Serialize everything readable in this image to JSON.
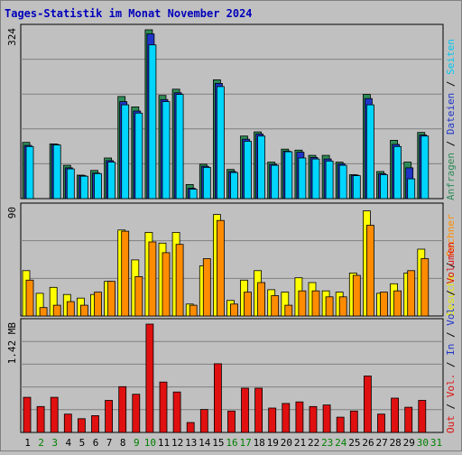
{
  "title": "Tages-Statistik im Monat November 2024",
  "colors": {
    "background": "#c0c0c0",
    "title": "#0000bb",
    "anfragen": "#2e8b57",
    "dateien": "#1f35c8",
    "seiten": "#00d5ff",
    "besuche": "#ffff00",
    "rechner": "#ff8c00",
    "volumen": "#e01010",
    "weekend": "#008000",
    "weekday": "#000000"
  },
  "chart_data": [
    {
      "type": "bar",
      "panel": "hits",
      "ytick": "324",
      "ylim": [
        0,
        324
      ],
      "categories": [
        "1",
        "2",
        "3",
        "4",
        "5",
        "6",
        "7",
        "8",
        "9",
        "10",
        "11",
        "12",
        "13",
        "14",
        "15",
        "16",
        "17",
        "18",
        "19",
        "20",
        "21",
        "22",
        "23",
        "24",
        "25",
        "26",
        "27",
        "28",
        "29",
        "30",
        "31"
      ],
      "series": [
        {
          "name": "Anfragen",
          "values": [
            108,
            0,
            105,
            64,
            45,
            54,
            78,
            196,
            176,
            324,
            198,
            210,
            27,
            66,
            228,
            56,
            120,
            128,
            70,
            95,
            93,
            83,
            83,
            70,
            46,
            200,
            52,
            112,
            70,
            127,
            0
          ]
        },
        {
          "name": "Dateien",
          "values": [
            102,
            0,
            104,
            59,
            44,
            49,
            73,
            186,
            168,
            316,
            190,
            203,
            20,
            62,
            221,
            52,
            114,
            124,
            66,
            91,
            89,
            79,
            76,
            67,
            45,
            192,
            48,
            104,
            59,
            122,
            0
          ]
        },
        {
          "name": "Seiten",
          "values": [
            100,
            0,
            103,
            57,
            43,
            48,
            70,
            180,
            164,
            295,
            186,
            200,
            18,
            60,
            215,
            50,
            110,
            120,
            64,
            90,
            78,
            76,
            72,
            64,
            44,
            180,
            46,
            100,
            38,
            120,
            0
          ]
        }
      ]
    },
    {
      "type": "bar",
      "panel": "visits",
      "ytick": "90",
      "ylim": [
        0,
        90
      ],
      "categories": [
        "1",
        "2",
        "3",
        "4",
        "5",
        "6",
        "7",
        "8",
        "9",
        "10",
        "11",
        "12",
        "13",
        "14",
        "15",
        "16",
        "17",
        "18",
        "19",
        "20",
        "21",
        "22",
        "23",
        "24",
        "25",
        "26",
        "27",
        "28",
        "29",
        "30",
        "31"
      ],
      "series": [
        {
          "name": "Besuche",
          "values": [
            38,
            19,
            24,
            18,
            15,
            18,
            29,
            72,
            47,
            70,
            61,
            70,
            10,
            42,
            85,
            13,
            30,
            38,
            22,
            20,
            32,
            28,
            21,
            20,
            36,
            88,
            19,
            27,
            36,
            56,
            0
          ]
        },
        {
          "name": "Rechner",
          "values": [
            30,
            7,
            9,
            12,
            9,
            20,
            29,
            71,
            33,
            62,
            53,
            60,
            9,
            48,
            80,
            10,
            20,
            28,
            17,
            9,
            21,
            21,
            16,
            16,
            34,
            76,
            20,
            21,
            38,
            48,
            0
          ]
        }
      ]
    },
    {
      "type": "bar",
      "panel": "volume",
      "ytick": "1.42 MB",
      "ylim": [
        0,
        1.42
      ],
      "categories": [
        "1",
        "2",
        "3",
        "4",
        "5",
        "6",
        "7",
        "8",
        "9",
        "10",
        "11",
        "12",
        "13",
        "14",
        "15",
        "16",
        "17",
        "18",
        "19",
        "20",
        "21",
        "22",
        "23",
        "24",
        "25",
        "26",
        "27",
        "28",
        "29",
        "30",
        "31"
      ],
      "series": [
        {
          "name": "Volumen",
          "values": [
            0.46,
            0.34,
            0.46,
            0.24,
            0.18,
            0.22,
            0.42,
            0.6,
            0.5,
            1.42,
            0.66,
            0.53,
            0.13,
            0.3,
            0.9,
            0.28,
            0.58,
            0.58,
            0.32,
            0.38,
            0.4,
            0.34,
            0.36,
            0.2,
            0.28,
            0.74,
            0.24,
            0.45,
            0.33,
            0.42,
            0
          ]
        }
      ]
    }
  ],
  "weekend_days": [
    2,
    3,
    9,
    10,
    16,
    17,
    23,
    24,
    30,
    31
  ],
  "right_legend": {
    "top": [
      {
        "text": "Anfragen",
        "color": "#2e8b57"
      },
      {
        "text": "Dateien",
        "color": "#1f35c8"
      },
      {
        "text": "Seiten",
        "color": "#00c8f0"
      }
    ],
    "middle": [
      {
        "text": "Besuche",
        "color": "#e8e800"
      },
      {
        "text": "Rechner",
        "color": "#ff8c00"
      }
    ],
    "bottom": [
      {
        "text": "Out",
        "color": "#e01010"
      },
      {
        "text": "Vol.",
        "color": "#e01010"
      },
      {
        "text": "In",
        "color": "#1f35c8"
      },
      {
        "text": "Vol.",
        "color": "#1f35c8"
      },
      {
        "text": "Volumen",
        "color": "#e01010"
      }
    ]
  }
}
